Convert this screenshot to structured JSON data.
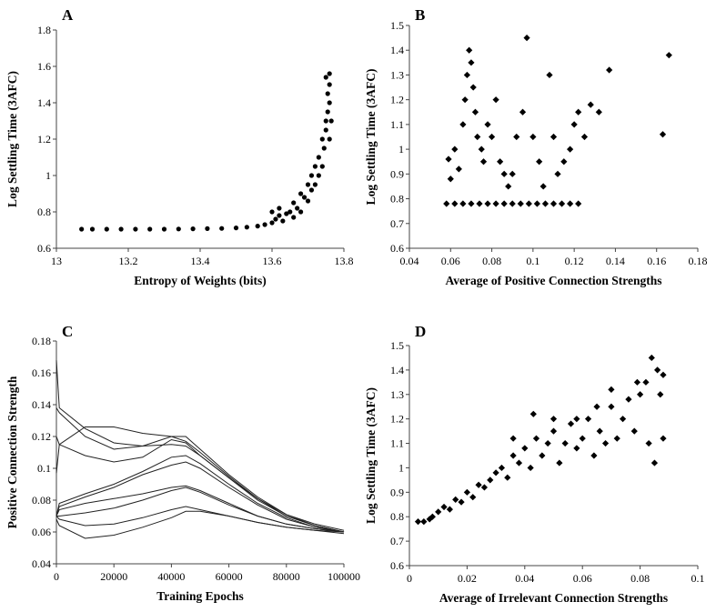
{
  "chart_data": [
    {
      "panel": "A",
      "type": "scatter",
      "xlabel": "Entropy of Weights (bits)",
      "ylabel": "Log Settling Time (3AFC)",
      "xlim": [
        13,
        13.8
      ],
      "ylim": [
        0.6,
        1.8
      ],
      "xticks": [
        "13",
        "13.2",
        "13.4",
        "13.6",
        "13.8"
      ],
      "yticks": [
        "0.6",
        "0.8",
        "1",
        "1.2",
        "1.4",
        "1.6",
        "1.8"
      ],
      "marker": "dot",
      "points": [
        [
          13.07,
          0.705
        ],
        [
          13.1,
          0.705
        ],
        [
          13.14,
          0.705
        ],
        [
          13.18,
          0.705
        ],
        [
          13.22,
          0.705
        ],
        [
          13.26,
          0.705
        ],
        [
          13.3,
          0.705
        ],
        [
          13.34,
          0.706
        ],
        [
          13.38,
          0.707
        ],
        [
          13.42,
          0.708
        ],
        [
          13.46,
          0.709
        ],
        [
          13.5,
          0.712
        ],
        [
          13.53,
          0.716
        ],
        [
          13.56,
          0.722
        ],
        [
          13.58,
          0.73
        ],
        [
          13.6,
          0.74
        ],
        [
          13.6,
          0.8
        ],
        [
          13.61,
          0.76
        ],
        [
          13.62,
          0.78
        ],
        [
          13.62,
          0.82
        ],
        [
          13.63,
          0.75
        ],
        [
          13.64,
          0.79
        ],
        [
          13.65,
          0.8
        ],
        [
          13.66,
          0.77
        ],
        [
          13.66,
          0.85
        ],
        [
          13.67,
          0.82
        ],
        [
          13.68,
          0.9
        ],
        [
          13.68,
          0.8
        ],
        [
          13.69,
          0.88
        ],
        [
          13.7,
          0.86
        ],
        [
          13.7,
          0.95
        ],
        [
          13.71,
          0.92
        ],
        [
          13.71,
          1.0
        ],
        [
          13.72,
          0.95
        ],
        [
          13.72,
          1.05
        ],
        [
          13.73,
          1.0
        ],
        [
          13.73,
          1.1
        ],
        [
          13.74,
          1.05
        ],
        [
          13.74,
          1.2
        ],
        [
          13.745,
          1.15
        ],
        [
          13.75,
          1.25
        ],
        [
          13.75,
          1.3
        ],
        [
          13.755,
          1.35
        ],
        [
          13.755,
          1.45
        ],
        [
          13.76,
          1.4
        ],
        [
          13.76,
          1.5
        ],
        [
          13.76,
          1.56
        ],
        [
          13.75,
          1.54
        ],
        [
          13.765,
          1.3
        ],
        [
          13.76,
          1.2
        ]
      ]
    },
    {
      "panel": "B",
      "type": "scatter",
      "xlabel": "Average of Positive Connection Strengths",
      "ylabel": "Log Settling Time (3AFC)",
      "xlim": [
        0.04,
        0.18
      ],
      "ylim": [
        0.6,
        1.5
      ],
      "xticks": [
        "0.04",
        "0.06",
        "0.08",
        "0.1",
        "0.12",
        "0.14",
        "0.16",
        "0.18"
      ],
      "yticks": [
        "0.6",
        "0.7",
        "0.8",
        "0.9",
        "1",
        "1.1",
        "1.2",
        "1.3",
        "1.4",
        "1.5"
      ],
      "marker": "diamond",
      "points": [
        [
          0.058,
          0.78
        ],
        [
          0.062,
          0.78
        ],
        [
          0.066,
          0.78
        ],
        [
          0.07,
          0.78
        ],
        [
          0.074,
          0.78
        ],
        [
          0.078,
          0.78
        ],
        [
          0.082,
          0.78
        ],
        [
          0.086,
          0.78
        ],
        [
          0.09,
          0.78
        ],
        [
          0.094,
          0.78
        ],
        [
          0.098,
          0.78
        ],
        [
          0.102,
          0.78
        ],
        [
          0.106,
          0.78
        ],
        [
          0.11,
          0.78
        ],
        [
          0.114,
          0.78
        ],
        [
          0.118,
          0.78
        ],
        [
          0.122,
          0.78
        ],
        [
          0.059,
          0.96
        ],
        [
          0.06,
          0.88
        ],
        [
          0.062,
          1.0
        ],
        [
          0.064,
          0.92
        ],
        [
          0.066,
          1.1
        ],
        [
          0.067,
          1.2
        ],
        [
          0.068,
          1.3
        ],
        [
          0.069,
          1.4
        ],
        [
          0.07,
          1.35
        ],
        [
          0.071,
          1.25
        ],
        [
          0.072,
          1.15
        ],
        [
          0.073,
          1.05
        ],
        [
          0.075,
          1.0
        ],
        [
          0.076,
          0.95
        ],
        [
          0.078,
          1.1
        ],
        [
          0.08,
          1.05
        ],
        [
          0.082,
          1.2
        ],
        [
          0.084,
          0.95
        ],
        [
          0.086,
          0.9
        ],
        [
          0.088,
          0.85
        ],
        [
          0.09,
          0.9
        ],
        [
          0.092,
          1.05
        ],
        [
          0.095,
          1.15
        ],
        [
          0.097,
          1.45
        ],
        [
          0.1,
          1.05
        ],
        [
          0.103,
          0.95
        ],
        [
          0.105,
          0.85
        ],
        [
          0.108,
          1.3
        ],
        [
          0.11,
          1.05
        ],
        [
          0.112,
          0.9
        ],
        [
          0.115,
          0.95
        ],
        [
          0.118,
          1.0
        ],
        [
          0.12,
          1.1
        ],
        [
          0.122,
          1.15
        ],
        [
          0.125,
          1.05
        ],
        [
          0.128,
          1.18
        ],
        [
          0.132,
          1.15
        ],
        [
          0.137,
          1.32
        ],
        [
          0.163,
          1.06
        ],
        [
          0.166,
          1.38
        ]
      ]
    },
    {
      "panel": "C",
      "type": "line",
      "xlabel": "Training Epochs",
      "ylabel": "Positive Connection Strength",
      "xlim": [
        0,
        100000
      ],
      "ylim": [
        0.04,
        0.18
      ],
      "xticks": [
        "0",
        "20000",
        "40000",
        "60000",
        "80000",
        "100000"
      ],
      "yticks": [
        "0.04",
        "0.06",
        "0.08",
        "0.1",
        "0.12",
        "0.14",
        "0.16",
        "0.18"
      ],
      "x": [
        0,
        1000,
        10000,
        20000,
        30000,
        40000,
        45000,
        50000,
        60000,
        70000,
        80000,
        90000,
        100000
      ],
      "series": [
        {
          "values": [
            0.168,
            0.138,
            0.125,
            0.116,
            0.114,
            0.115,
            0.114,
            0.108,
            0.094,
            0.081,
            0.071,
            0.065,
            0.061
          ]
        },
        {
          "values": [
            0.138,
            0.135,
            0.12,
            0.112,
            0.114,
            0.12,
            0.12,
            0.112,
            0.096,
            0.082,
            0.071,
            0.064,
            0.06
          ]
        },
        {
          "values": [
            0.12,
            0.115,
            0.126,
            0.126,
            0.122,
            0.12,
            0.117,
            0.11,
            0.095,
            0.081,
            0.07,
            0.064,
            0.06
          ]
        },
        {
          "values": [
            0.097,
            0.115,
            0.108,
            0.104,
            0.107,
            0.118,
            0.116,
            0.108,
            0.094,
            0.08,
            0.07,
            0.064,
            0.06
          ]
        },
        {
          "values": [
            0.07,
            0.078,
            0.084,
            0.09,
            0.098,
            0.107,
            0.108,
            0.103,
            0.09,
            0.078,
            0.069,
            0.063,
            0.06
          ]
        },
        {
          "values": [
            0.07,
            0.076,
            0.082,
            0.088,
            0.096,
            0.102,
            0.104,
            0.1,
            0.088,
            0.077,
            0.068,
            0.063,
            0.06
          ]
        },
        {
          "values": [
            0.07,
            0.074,
            0.078,
            0.081,
            0.084,
            0.088,
            0.089,
            0.086,
            0.078,
            0.07,
            0.065,
            0.062,
            0.06
          ]
        },
        {
          "values": [
            0.07,
            0.07,
            0.072,
            0.075,
            0.08,
            0.086,
            0.088,
            0.085,
            0.077,
            0.07,
            0.065,
            0.062,
            0.06
          ]
        },
        {
          "values": [
            0.07,
            0.068,
            0.064,
            0.065,
            0.069,
            0.074,
            0.076,
            0.074,
            0.07,
            0.066,
            0.063,
            0.061,
            0.06
          ]
        },
        {
          "values": [
            0.068,
            0.064,
            0.056,
            0.058,
            0.063,
            0.069,
            0.073,
            0.073,
            0.07,
            0.066,
            0.063,
            0.061,
            0.059
          ]
        }
      ]
    },
    {
      "panel": "D",
      "type": "scatter",
      "xlabel": "Average of Irrelevant Connection Strengths",
      "ylabel": "Log Settling Time (3AFC)",
      "xlim": [
        0,
        0.1
      ],
      "ylim": [
        0.6,
        1.5
      ],
      "xticks": [
        "0",
        "0.02",
        "0.04",
        "0.06",
        "0.08",
        "0.1"
      ],
      "yticks": [
        "0.6",
        "0.7",
        "0.8",
        "0.9",
        "1",
        "1.1",
        "1.2",
        "1.3",
        "1.4",
        "1.5"
      ],
      "marker": "diamond",
      "points": [
        [
          0.003,
          0.78
        ],
        [
          0.005,
          0.78
        ],
        [
          0.007,
          0.79
        ],
        [
          0.008,
          0.8
        ],
        [
          0.01,
          0.82
        ],
        [
          0.012,
          0.84
        ],
        [
          0.014,
          0.83
        ],
        [
          0.016,
          0.87
        ],
        [
          0.018,
          0.86
        ],
        [
          0.02,
          0.9
        ],
        [
          0.022,
          0.88
        ],
        [
          0.024,
          0.93
        ],
        [
          0.026,
          0.92
        ],
        [
          0.028,
          0.95
        ],
        [
          0.03,
          0.98
        ],
        [
          0.032,
          1.0
        ],
        [
          0.034,
          0.96
        ],
        [
          0.036,
          1.05
        ],
        [
          0.038,
          1.02
        ],
        [
          0.04,
          1.08
        ],
        [
          0.042,
          1.0
        ],
        [
          0.044,
          1.12
        ],
        [
          0.046,
          1.05
        ],
        [
          0.048,
          1.1
        ],
        [
          0.05,
          1.15
        ],
        [
          0.052,
          1.02
        ],
        [
          0.054,
          1.1
        ],
        [
          0.056,
          1.18
        ],
        [
          0.058,
          1.08
        ],
        [
          0.06,
          1.12
        ],
        [
          0.062,
          1.2
        ],
        [
          0.064,
          1.05
        ],
        [
          0.066,
          1.15
        ],
        [
          0.068,
          1.1
        ],
        [
          0.07,
          1.25
        ],
        [
          0.072,
          1.12
        ],
        [
          0.074,
          1.2
        ],
        [
          0.076,
          1.28
        ],
        [
          0.078,
          1.15
        ],
        [
          0.08,
          1.3
        ],
        [
          0.082,
          1.35
        ],
        [
          0.083,
          1.1
        ],
        [
          0.084,
          1.45
        ],
        [
          0.085,
          1.02
        ],
        [
          0.086,
          1.4
        ],
        [
          0.087,
          1.3
        ],
        [
          0.088,
          1.12
        ],
        [
          0.088,
          1.38
        ],
        [
          0.079,
          1.35
        ],
        [
          0.07,
          1.32
        ],
        [
          0.065,
          1.25
        ],
        [
          0.058,
          1.2
        ],
        [
          0.05,
          1.2
        ],
        [
          0.043,
          1.22
        ],
        [
          0.036,
          1.12
        ]
      ]
    }
  ]
}
